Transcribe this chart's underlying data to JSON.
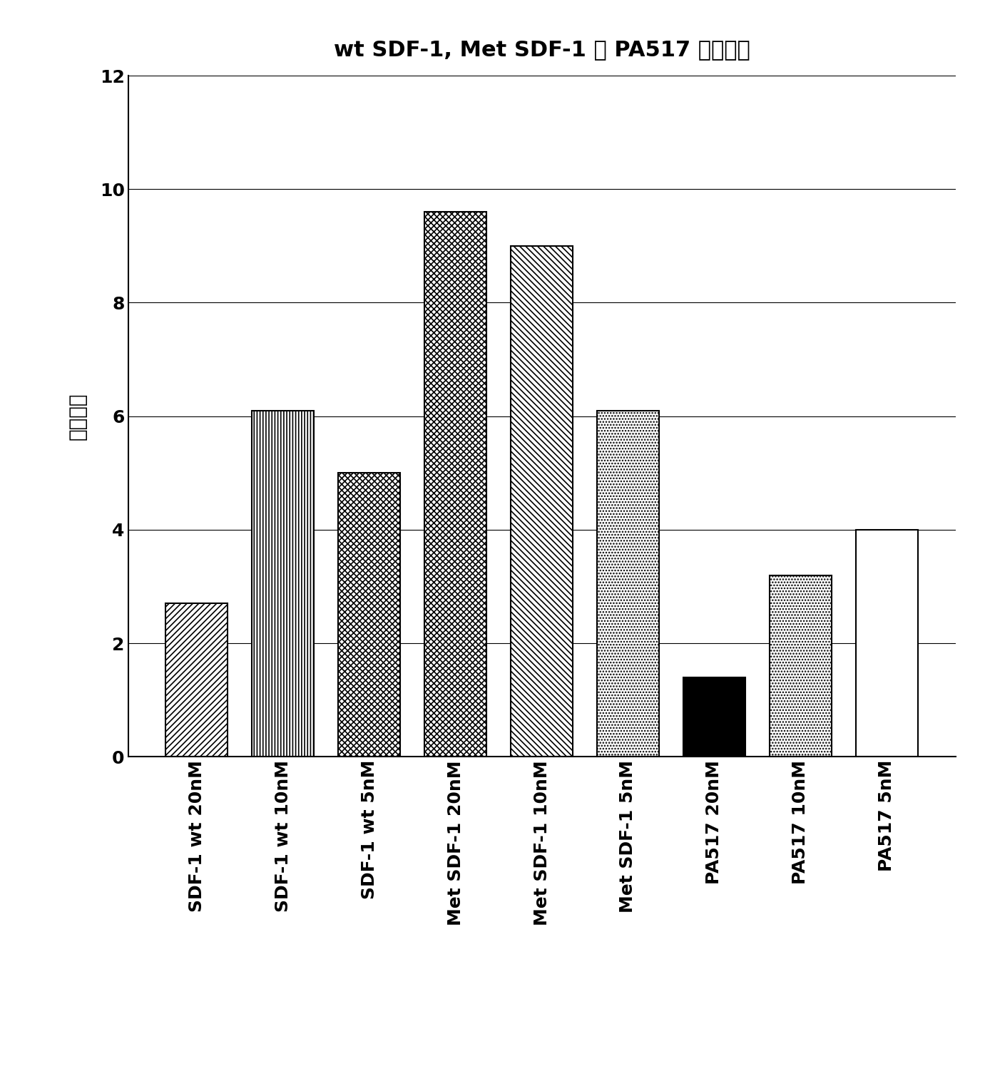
{
  "title": "wt SDF-1, Met SDF-1 和 PA517 的趨化性",
  "ylabel": "趨化指数",
  "categories": [
    "SDF-1 wt 20nM",
    "SDF-1 wt 10nM",
    "SDF-1 wt 5nM",
    "Met SDF-1 20nM",
    "Met SDF-1 10nM",
    "Met SDF-1 5nM",
    "PA517 20nM",
    "PA517 10nM",
    "PA517 5nM"
  ],
  "values": [
    2.7,
    6.1,
    5.0,
    9.6,
    9.0,
    6.1,
    1.4,
    3.2,
    4.0
  ],
  "ylim": [
    0,
    12
  ],
  "yticks": [
    0,
    2,
    4,
    6,
    8,
    10,
    12
  ],
  "title_fontsize": 22,
  "ylabel_fontsize": 20,
  "tick_fontsize": 18,
  "background_color": "white",
  "bar_width": 0.72,
  "hatch_linewidth": 1.2
}
